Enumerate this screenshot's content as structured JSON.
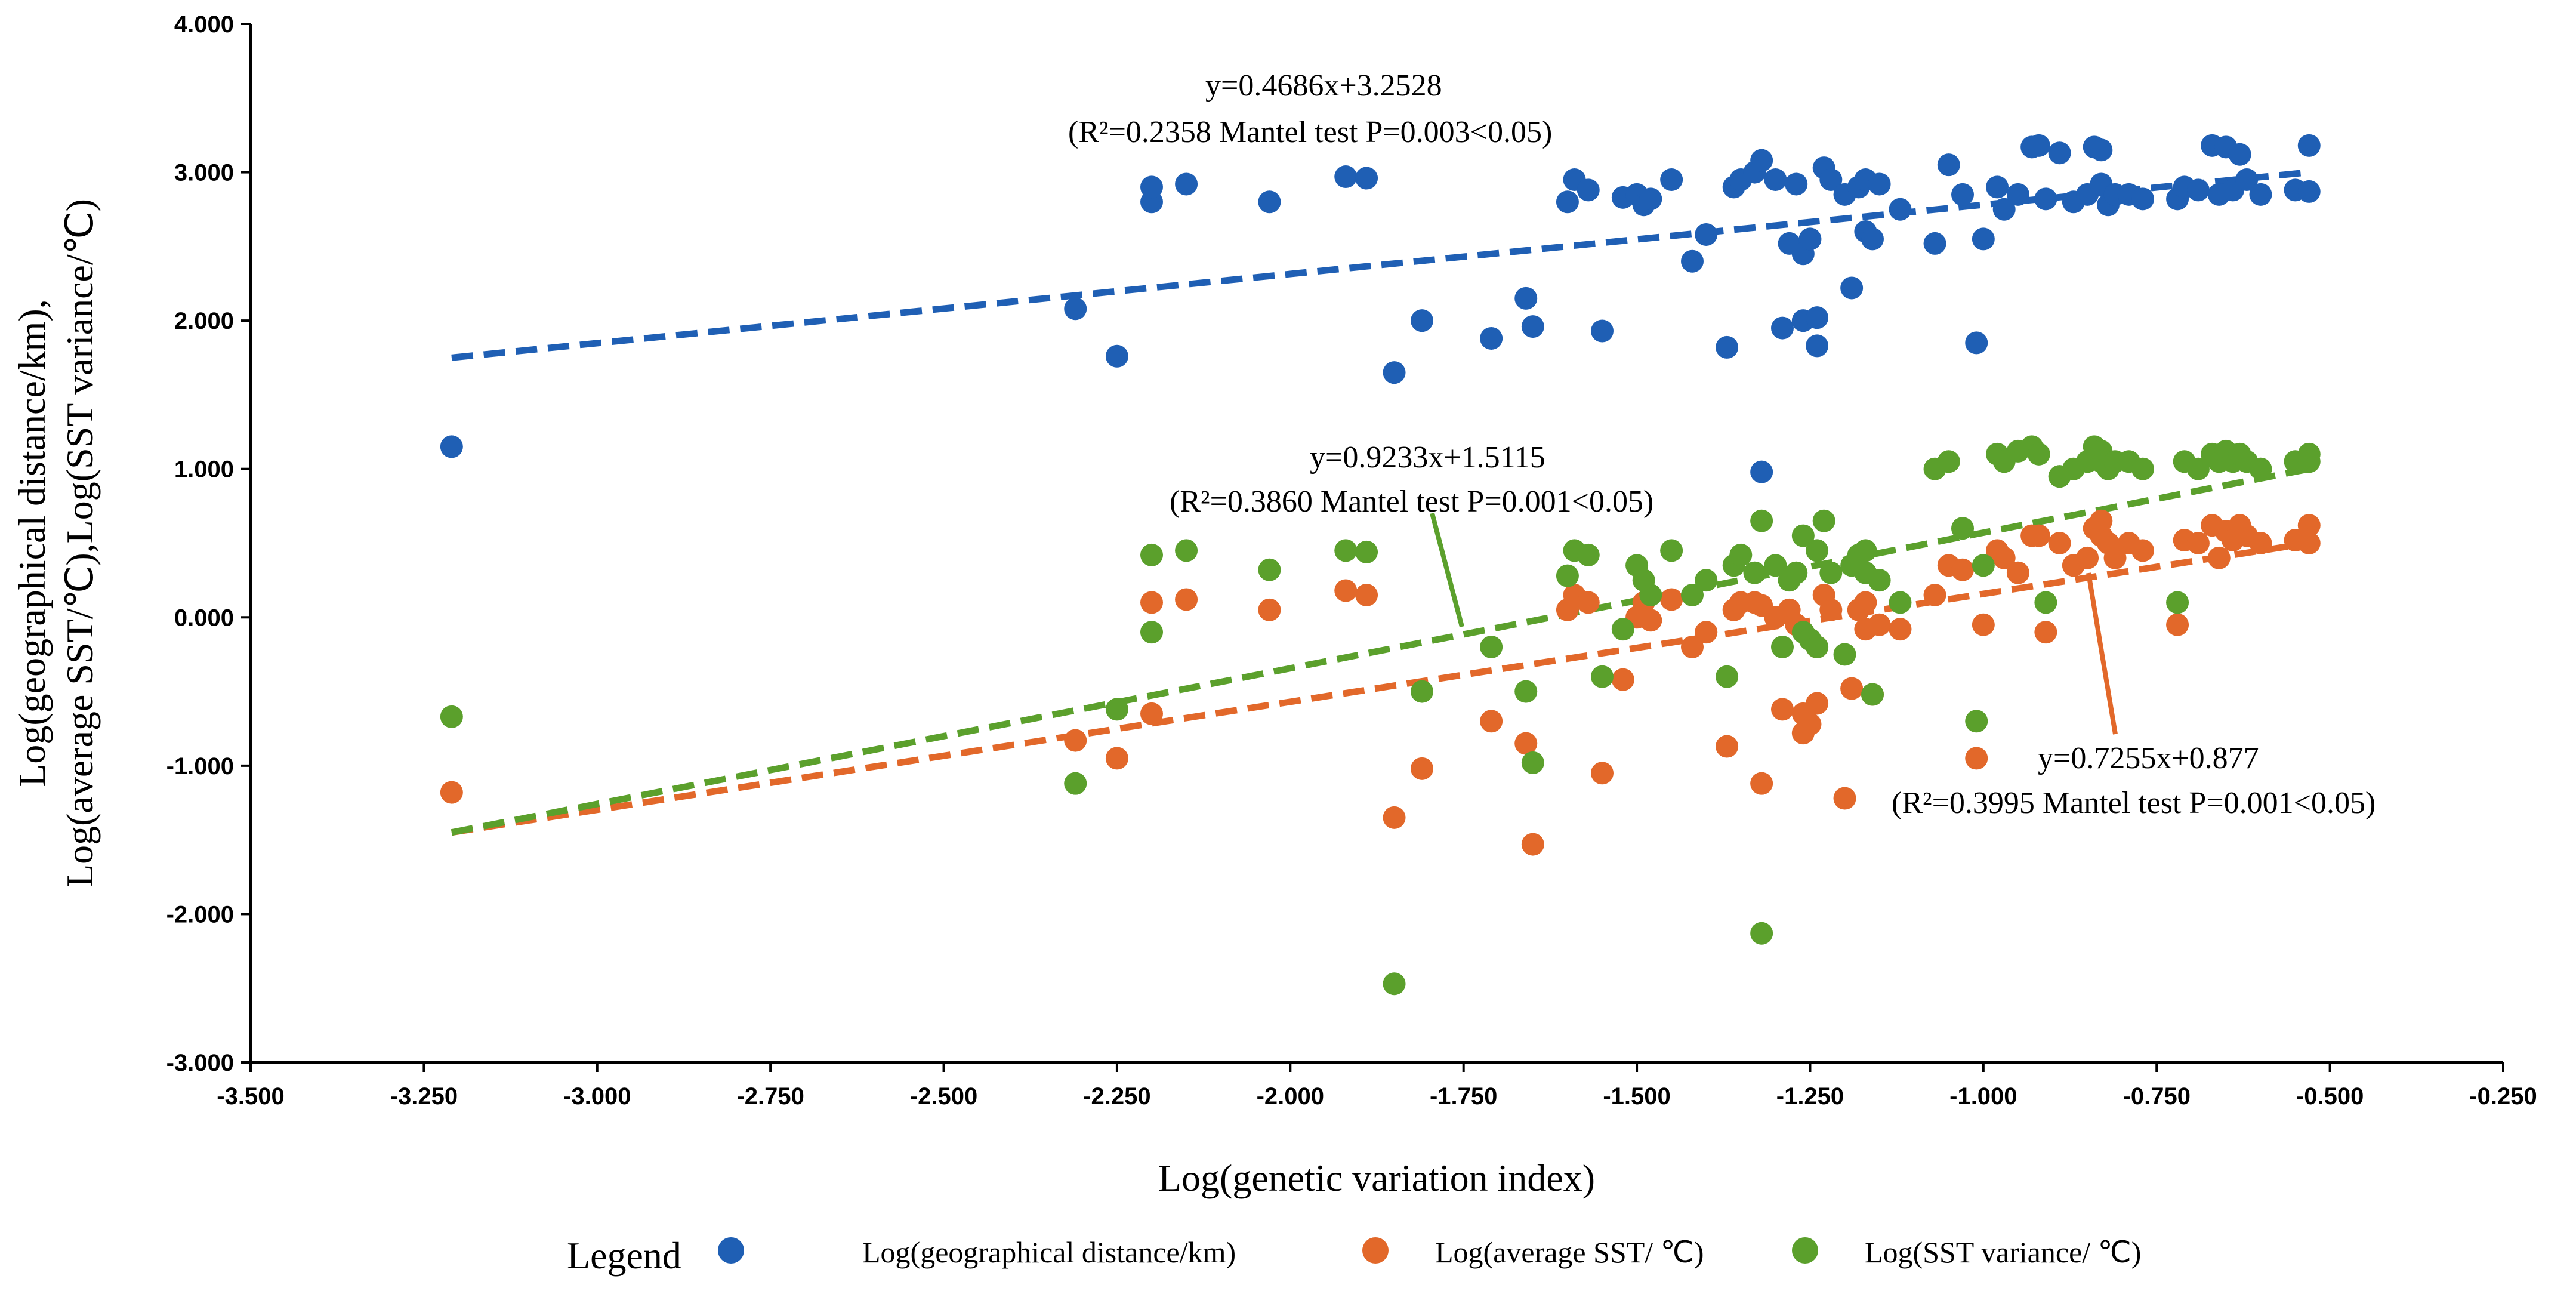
{
  "chart_data": {
    "type": "scatter",
    "title": "",
    "xlabel": "Log(genetic variation index)",
    "ylabel_lines": [
      "Log(geographical distance/km),",
      "Log(average SST/℃),Log(SST variance/℃)"
    ],
    "xlim": [
      -3.5,
      -0.25
    ],
    "ylim": [
      -3.0,
      4.0
    ],
    "x_ticks": [
      -3.5,
      -3.25,
      -3.0,
      -2.75,
      -2.5,
      -2.25,
      -2.0,
      -1.75,
      -1.5,
      -1.25,
      -1.0,
      -0.75,
      -0.5,
      -0.25
    ],
    "x_tick_labels": [
      "-3.500",
      "-3.250",
      "-3.000",
      "-2.750",
      "-2.500",
      "-2.250",
      "-2.000",
      "-1.750",
      "-1.500",
      "-1.250",
      "-1.000",
      "-0.750",
      "-0.500",
      "-0.250"
    ],
    "y_ticks": [
      -3,
      -2,
      -1,
      0,
      1,
      2,
      3,
      4
    ],
    "y_tick_labels": [
      "-3.000",
      "-2.000",
      "-1.000",
      "0.000",
      "1.000",
      "2.000",
      "3.000",
      "4.000"
    ],
    "legend_title": "Legend",
    "legend_position": "bottom",
    "grid": false,
    "series": [
      {
        "name": "Log(geographical distance/km)",
        "color": "#1F5FB4",
        "trend_x": [
          -3.21,
          -0.53
        ],
        "trend_y": [
          1.75,
          3.0
        ],
        "equation": "y=0.4686x+3.2528",
        "stats": "(R²=0.2358 Mantel test P=0.003<0.05)",
        "points": [
          [
            -3.21,
            1.15
          ],
          [
            -2.31,
            2.08
          ],
          [
            -2.25,
            1.76
          ],
          [
            -2.2,
            2.8
          ],
          [
            -2.2,
            2.9
          ],
          [
            -2.15,
            2.92
          ],
          [
            -2.03,
            2.8
          ],
          [
            -1.92,
            2.97
          ],
          [
            -1.89,
            2.96
          ],
          [
            -1.85,
            1.65
          ],
          [
            -1.81,
            2.0
          ],
          [
            -1.71,
            1.88
          ],
          [
            -1.66,
            2.15
          ],
          [
            -1.65,
            1.96
          ],
          [
            -1.6,
            2.8
          ],
          [
            -1.59,
            2.95
          ],
          [
            -1.57,
            2.88
          ],
          [
            -1.55,
            1.93
          ],
          [
            -1.52,
            2.83
          ],
          [
            -1.5,
            2.85
          ],
          [
            -1.49,
            2.78
          ],
          [
            -1.48,
            2.82
          ],
          [
            -1.45,
            2.95
          ],
          [
            -1.42,
            2.4
          ],
          [
            -1.4,
            2.58
          ],
          [
            -1.37,
            1.82
          ],
          [
            -1.36,
            2.9
          ],
          [
            -1.35,
            2.95
          ],
          [
            -1.33,
            3.0
          ],
          [
            -1.32,
            3.08
          ],
          [
            -1.32,
            0.98
          ],
          [
            -1.3,
            2.95
          ],
          [
            -1.29,
            1.95
          ],
          [
            -1.28,
            2.52
          ],
          [
            -1.27,
            2.92
          ],
          [
            -1.26,
            2.0
          ],
          [
            -1.26,
            2.45
          ],
          [
            -1.25,
            2.55
          ],
          [
            -1.24,
            2.02
          ],
          [
            -1.24,
            1.83
          ],
          [
            -1.23,
            3.03
          ],
          [
            -1.22,
            2.95
          ],
          [
            -1.2,
            2.85
          ],
          [
            -1.19,
            2.22
          ],
          [
            -1.18,
            2.9
          ],
          [
            -1.17,
            2.95
          ],
          [
            -1.17,
            2.6
          ],
          [
            -1.16,
            2.55
          ],
          [
            -1.15,
            2.92
          ],
          [
            -1.12,
            2.75
          ],
          [
            -1.07,
            2.52
          ],
          [
            -1.05,
            3.05
          ],
          [
            -1.03,
            2.85
          ],
          [
            -1.01,
            1.85
          ],
          [
            -1.0,
            2.55
          ],
          [
            -0.98,
            2.9
          ],
          [
            -0.97,
            2.75
          ],
          [
            -0.95,
            2.85
          ],
          [
            -0.93,
            3.17
          ],
          [
            -0.92,
            3.18
          ],
          [
            -0.91,
            2.82
          ],
          [
            -0.89,
            3.13
          ],
          [
            -0.87,
            2.8
          ],
          [
            -0.85,
            2.85
          ],
          [
            -0.84,
            3.17
          ],
          [
            -0.83,
            3.15
          ],
          [
            -0.83,
            2.92
          ],
          [
            -0.82,
            2.78
          ],
          [
            -0.81,
            2.85
          ],
          [
            -0.79,
            2.85
          ],
          [
            -0.77,
            2.82
          ],
          [
            -0.72,
            2.82
          ],
          [
            -0.71,
            2.9
          ],
          [
            -0.69,
            2.88
          ],
          [
            -0.67,
            3.18
          ],
          [
            -0.66,
            2.85
          ],
          [
            -0.65,
            3.17
          ],
          [
            -0.64,
            2.88
          ],
          [
            -0.63,
            3.12
          ],
          [
            -0.62,
            2.95
          ],
          [
            -0.6,
            2.85
          ],
          [
            -0.55,
            2.88
          ],
          [
            -0.53,
            3.18
          ],
          [
            -0.53,
            2.87
          ]
        ]
      },
      {
        "name": "Log(average SST/ ℃)",
        "color": "#E2682A",
        "trend_x": [
          -3.21,
          -0.53
        ],
        "trend_y": [
          -1.45,
          0.5
        ],
        "equation": "y=0.7255x+0.877",
        "stats": "(R²=0.3995 Mantel test P=0.001<0.05)",
        "points": [
          [
            -3.21,
            -1.18
          ],
          [
            -2.31,
            -0.83
          ],
          [
            -2.25,
            -0.95
          ],
          [
            -2.2,
            -0.65
          ],
          [
            -2.2,
            0.1
          ],
          [
            -2.15,
            0.12
          ],
          [
            -2.03,
            0.05
          ],
          [
            -1.92,
            0.18
          ],
          [
            -1.89,
            0.15
          ],
          [
            -1.85,
            -1.35
          ],
          [
            -1.81,
            -1.02
          ],
          [
            -1.71,
            -0.7
          ],
          [
            -1.66,
            -0.85
          ],
          [
            -1.65,
            -1.53
          ],
          [
            -1.6,
            0.05
          ],
          [
            -1.59,
            0.15
          ],
          [
            -1.57,
            0.1
          ],
          [
            -1.55,
            -1.05
          ],
          [
            -1.52,
            -0.42
          ],
          [
            -1.5,
            0.0
          ],
          [
            -1.49,
            0.1
          ],
          [
            -1.48,
            -0.02
          ],
          [
            -1.45,
            0.12
          ],
          [
            -1.42,
            -0.2
          ],
          [
            -1.4,
            -0.1
          ],
          [
            -1.37,
            -0.87
          ],
          [
            -1.36,
            0.05
          ],
          [
            -1.35,
            0.1
          ],
          [
            -1.33,
            0.1
          ],
          [
            -1.32,
            0.08
          ],
          [
            -1.32,
            -1.12
          ],
          [
            -1.3,
            0.0
          ],
          [
            -1.29,
            -0.62
          ],
          [
            -1.28,
            0.05
          ],
          [
            -1.27,
            -0.05
          ],
          [
            -1.26,
            -0.65
          ],
          [
            -1.26,
            -0.78
          ],
          [
            -1.25,
            -0.72
          ],
          [
            -1.24,
            -0.58
          ],
          [
            -1.24,
            -0.2
          ],
          [
            -1.23,
            0.15
          ],
          [
            -1.22,
            0.05
          ],
          [
            -1.2,
            -1.22
          ],
          [
            -1.19,
            -0.48
          ],
          [
            -1.18,
            0.05
          ],
          [
            -1.17,
            -0.08
          ],
          [
            -1.17,
            0.1
          ],
          [
            -1.16,
            -0.52
          ],
          [
            -1.15,
            -0.05
          ],
          [
            -1.12,
            -0.08
          ],
          [
            -1.07,
            0.15
          ],
          [
            -1.05,
            0.35
          ],
          [
            -1.03,
            0.32
          ],
          [
            -1.01,
            -0.95
          ],
          [
            -1.0,
            -0.05
          ],
          [
            -0.98,
            0.45
          ],
          [
            -0.97,
            0.4
          ],
          [
            -0.95,
            0.3
          ],
          [
            -0.93,
            0.55
          ],
          [
            -0.92,
            0.55
          ],
          [
            -0.91,
            -0.1
          ],
          [
            -0.89,
            0.5
          ],
          [
            -0.87,
            0.35
          ],
          [
            -0.85,
            0.4
          ],
          [
            -0.84,
            0.6
          ],
          [
            -0.83,
            0.65
          ],
          [
            -0.83,
            0.55
          ],
          [
            -0.82,
            0.5
          ],
          [
            -0.81,
            0.4
          ],
          [
            -0.79,
            0.5
          ],
          [
            -0.77,
            0.45
          ],
          [
            -0.72,
            -0.05
          ],
          [
            -0.71,
            0.52
          ],
          [
            -0.69,
            0.5
          ],
          [
            -0.67,
            0.62
          ],
          [
            -0.66,
            0.4
          ],
          [
            -0.65,
            0.58
          ],
          [
            -0.64,
            0.52
          ],
          [
            -0.63,
            0.62
          ],
          [
            -0.62,
            0.55
          ],
          [
            -0.6,
            0.5
          ],
          [
            -0.55,
            0.52
          ],
          [
            -0.53,
            0.62
          ],
          [
            -0.53,
            0.5
          ]
        ]
      },
      {
        "name": "Log(SST variance/ ℃)",
        "color": "#5BA02C",
        "trend_x": [
          -3.21,
          -0.53
        ],
        "trend_y": [
          -1.45,
          1.0
        ],
        "equation": "y=0.9233x+1.5115",
        "stats": "(R²=0.3860 Mantel test P=0.001<0.05)",
        "points": [
          [
            -3.21,
            -0.67
          ],
          [
            -2.31,
            -1.12
          ],
          [
            -2.25,
            -0.62
          ],
          [
            -2.2,
            -0.1
          ],
          [
            -2.2,
            0.42
          ],
          [
            -2.15,
            0.45
          ],
          [
            -2.03,
            0.32
          ],
          [
            -1.92,
            0.45
          ],
          [
            -1.89,
            0.44
          ],
          [
            -1.85,
            -2.47
          ],
          [
            -1.81,
            -0.5
          ],
          [
            -1.71,
            -0.2
          ],
          [
            -1.66,
            -0.5
          ],
          [
            -1.65,
            -0.98
          ],
          [
            -1.6,
            0.28
          ],
          [
            -1.59,
            0.45
          ],
          [
            -1.57,
            0.42
          ],
          [
            -1.55,
            -0.4
          ],
          [
            -1.52,
            -0.08
          ],
          [
            -1.5,
            0.35
          ],
          [
            -1.49,
            0.25
          ],
          [
            -1.48,
            0.15
          ],
          [
            -1.45,
            0.45
          ],
          [
            -1.42,
            0.15
          ],
          [
            -1.4,
            0.25
          ],
          [
            -1.37,
            -0.4
          ],
          [
            -1.36,
            0.35
          ],
          [
            -1.35,
            0.42
          ],
          [
            -1.33,
            0.3
          ],
          [
            -1.32,
            0.65
          ],
          [
            -1.32,
            -2.13
          ],
          [
            -1.3,
            0.35
          ],
          [
            -1.29,
            -0.2
          ],
          [
            -1.28,
            0.25
          ],
          [
            -1.27,
            0.3
          ],
          [
            -1.26,
            -0.1
          ],
          [
            -1.26,
            0.55
          ],
          [
            -1.25,
            -0.15
          ],
          [
            -1.24,
            0.45
          ],
          [
            -1.24,
            -0.2
          ],
          [
            -1.23,
            0.65
          ],
          [
            -1.22,
            0.3
          ],
          [
            -1.2,
            -0.25
          ],
          [
            -1.19,
            0.35
          ],
          [
            -1.18,
            0.42
          ],
          [
            -1.17,
            0.3
          ],
          [
            -1.17,
            0.45
          ],
          [
            -1.16,
            -0.52
          ],
          [
            -1.15,
            0.25
          ],
          [
            -1.12,
            0.1
          ],
          [
            -1.07,
            1.0
          ],
          [
            -1.05,
            1.05
          ],
          [
            -1.03,
            0.6
          ],
          [
            -1.01,
            -0.7
          ],
          [
            -1.0,
            0.35
          ],
          [
            -0.98,
            1.1
          ],
          [
            -0.97,
            1.05
          ],
          [
            -0.95,
            1.12
          ],
          [
            -0.93,
            1.15
          ],
          [
            -0.92,
            1.1
          ],
          [
            -0.91,
            0.1
          ],
          [
            -0.89,
            0.95
          ],
          [
            -0.87,
            1.0
          ],
          [
            -0.85,
            1.05
          ],
          [
            -0.84,
            1.15
          ],
          [
            -0.83,
            1.12
          ],
          [
            -0.83,
            1.05
          ],
          [
            -0.82,
            1.0
          ],
          [
            -0.81,
            1.05
          ],
          [
            -0.79,
            1.05
          ],
          [
            -0.77,
            1.0
          ],
          [
            -0.72,
            0.1
          ],
          [
            -0.71,
            1.05
          ],
          [
            -0.69,
            1.0
          ],
          [
            -0.67,
            1.1
          ],
          [
            -0.66,
            1.05
          ],
          [
            -0.65,
            1.12
          ],
          [
            -0.64,
            1.05
          ],
          [
            -0.63,
            1.1
          ],
          [
            -0.62,
            1.05
          ],
          [
            -0.6,
            1.0
          ],
          [
            -0.55,
            1.05
          ],
          [
            -0.53,
            1.1
          ],
          [
            -0.53,
            1.05
          ]
        ]
      }
    ]
  }
}
